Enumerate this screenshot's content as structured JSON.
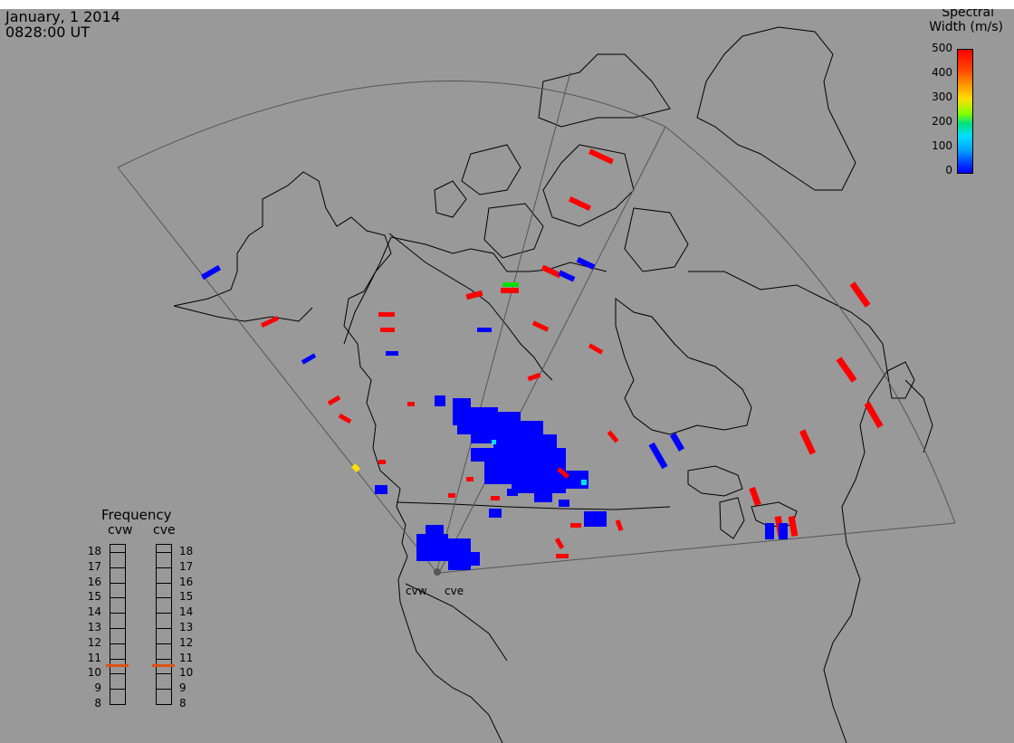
{
  "header": {
    "date": "January, 1 2014",
    "time": "0828:00 UT"
  },
  "colorbar": {
    "title_line1": "Spectral",
    "title_line2": "Width (m/s)",
    "ticks": [
      "500",
      "400",
      "300",
      "200",
      "100",
      "0"
    ],
    "range": [
      0,
      500
    ],
    "colors": [
      "#0000ff",
      "#00b4ff",
      "#00e060",
      "#ffe000",
      "#ff8000",
      "#ff0000"
    ]
  },
  "radars": [
    {
      "id": "cvw",
      "label": "cvw"
    },
    {
      "id": "cve",
      "label": "cve"
    }
  ],
  "frequency_panel": {
    "title": "Frequency",
    "columns": [
      "cvw",
      "cve"
    ],
    "ticks": [
      "18",
      "17",
      "16",
      "15",
      "14",
      "13",
      "12",
      "11",
      "10",
      "9",
      "8"
    ],
    "range_mhz": [
      8,
      18
    ],
    "values_mhz": [
      10.6,
      10.6
    ],
    "marker_color": "#e05010"
  },
  "colors": {
    "background": "#999999",
    "coastline": "#000000",
    "fov": "#555555",
    "low_width": "#0000ff",
    "high_width": "#ff0000"
  }
}
